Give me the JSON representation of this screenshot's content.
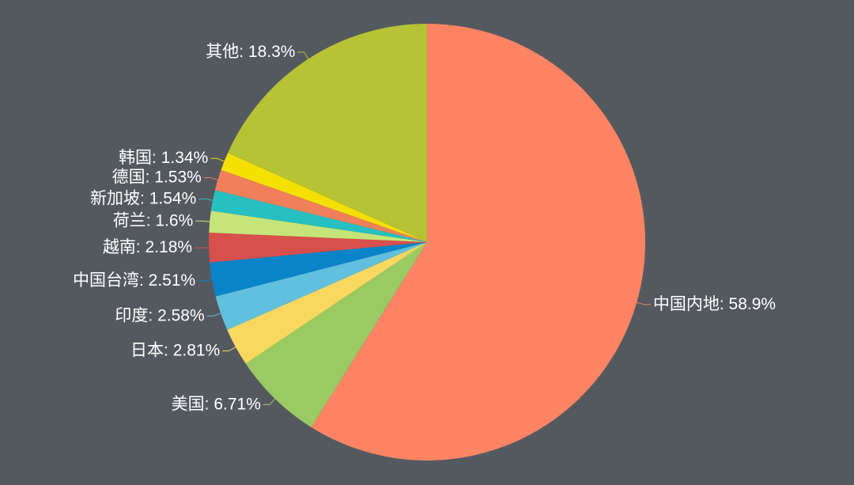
{
  "chart_data": {
    "type": "pie",
    "categories": [
      "中国内地",
      "美国",
      "日本",
      "印度",
      "中国台湾",
      "越南",
      "荷兰",
      "新加坡",
      "德国",
      "韩国",
      "其他"
    ],
    "values": [
      58.9,
      6.71,
      2.81,
      2.58,
      2.51,
      2.18,
      1.6,
      1.54,
      1.53,
      1.34,
      18.3
    ],
    "unit": "%",
    "colors": [
      "#FE8463",
      "#9BCA63",
      "#FAD860",
      "#60C0DD",
      "#0A84C8",
      "#D7504B",
      "#C6E579",
      "#26C0C0",
      "#F0805A",
      "#F4E001",
      "#B5C334"
    ]
  },
  "theme": {
    "background": "#54595F",
    "label_color": "#FFFFFF"
  }
}
